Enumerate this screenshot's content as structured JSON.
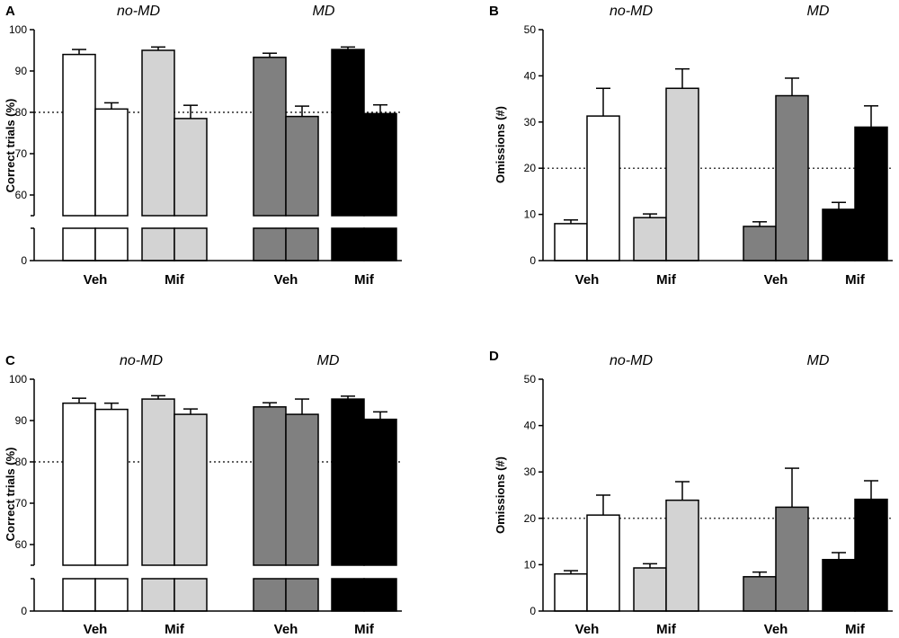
{
  "figure": {
    "colors": {
      "white": "#ffffff",
      "lightgray": "#d3d3d3",
      "darkgray": "#808080",
      "black": "#000000"
    }
  },
  "chart_data": [
    {
      "id": "A",
      "panel_label": "A",
      "type": "bar",
      "ylabel": "Correct trials (%)",
      "group_titles": [
        "no-MD",
        "MD"
      ],
      "categories": [
        "Veh",
        "Mif",
        "Veh",
        "Mif"
      ],
      "axis_break": true,
      "ylim": [
        55,
        100
      ],
      "yticks": [
        60,
        70,
        80,
        90,
        100
      ],
      "zero_tick": 0,
      "reference_line": 80,
      "fill_colors": [
        "white",
        "lightgray",
        "darkgray",
        "black"
      ],
      "bars": [
        {
          "values": [
            94.0,
            80.8
          ],
          "errors": [
            1.2,
            1.5
          ]
        },
        {
          "values": [
            95.0,
            78.5
          ],
          "errors": [
            0.8,
            3.2
          ]
        },
        {
          "values": [
            93.3,
            79.0
          ],
          "errors": [
            1.0,
            2.5
          ]
        },
        {
          "values": [
            95.2,
            79.7
          ],
          "errors": [
            0.6,
            2.1
          ]
        }
      ]
    },
    {
      "id": "B",
      "panel_label": "B",
      "type": "bar",
      "ylabel": "Omissions (#)",
      "group_titles": [
        "no-MD",
        "MD"
      ],
      "categories": [
        "Veh",
        "Mif",
        "Veh",
        "Mif"
      ],
      "axis_break": false,
      "ylim": [
        0,
        50
      ],
      "yticks": [
        0,
        10,
        20,
        30,
        40,
        50
      ],
      "reference_line": 20,
      "fill_colors": [
        "white",
        "lightgray",
        "darkgray",
        "black"
      ],
      "bars": [
        {
          "values": [
            8.0,
            31.3
          ],
          "errors": [
            0.8,
            6.0
          ]
        },
        {
          "values": [
            9.3,
            37.3
          ],
          "errors": [
            0.8,
            4.2
          ]
        },
        {
          "values": [
            7.4,
            35.7
          ],
          "errors": [
            1.0,
            3.8
          ]
        },
        {
          "values": [
            11.1,
            28.9
          ],
          "errors": [
            1.5,
            4.6
          ]
        }
      ]
    },
    {
      "id": "C",
      "panel_label": "C",
      "type": "bar",
      "ylabel": "Correct trials (%)",
      "group_titles": [
        "no-MD",
        "MD"
      ],
      "categories": [
        "Veh",
        "Mif",
        "Veh",
        "Mif"
      ],
      "axis_break": true,
      "ylim": [
        55,
        100
      ],
      "yticks": [
        60,
        70,
        80,
        90,
        100
      ],
      "zero_tick": 0,
      "reference_line": 80,
      "fill_colors": [
        "white",
        "lightgray",
        "darkgray",
        "black"
      ],
      "bars": [
        {
          "values": [
            94.2,
            92.7
          ],
          "errors": [
            1.2,
            1.5
          ]
        },
        {
          "values": [
            95.2,
            91.5
          ],
          "errors": [
            0.8,
            1.3
          ]
        },
        {
          "values": [
            93.3,
            91.5
          ],
          "errors": [
            1.0,
            3.7
          ]
        },
        {
          "values": [
            95.2,
            90.3
          ],
          "errors": [
            0.7,
            1.8
          ]
        }
      ]
    },
    {
      "id": "D",
      "panel_label": "D",
      "type": "bar",
      "ylabel": "Omissions (#)",
      "group_titles": [
        "no-MD",
        "MD"
      ],
      "categories": [
        "Veh",
        "Mif",
        "Veh",
        "Mif"
      ],
      "axis_break": false,
      "ylim": [
        0,
        50
      ],
      "yticks": [
        0,
        10,
        20,
        30,
        40,
        50
      ],
      "reference_line": 20,
      "fill_colors": [
        "white",
        "lightgray",
        "darkgray",
        "black"
      ],
      "bars": [
        {
          "values": [
            8.0,
            20.7
          ],
          "errors": [
            0.7,
            4.3
          ]
        },
        {
          "values": [
            9.3,
            23.9
          ],
          "errors": [
            0.9,
            4.0
          ]
        },
        {
          "values": [
            7.4,
            22.4
          ],
          "errors": [
            1.0,
            8.4
          ]
        },
        {
          "values": [
            11.1,
            24.1
          ],
          "errors": [
            1.5,
            4.0
          ]
        }
      ]
    }
  ]
}
